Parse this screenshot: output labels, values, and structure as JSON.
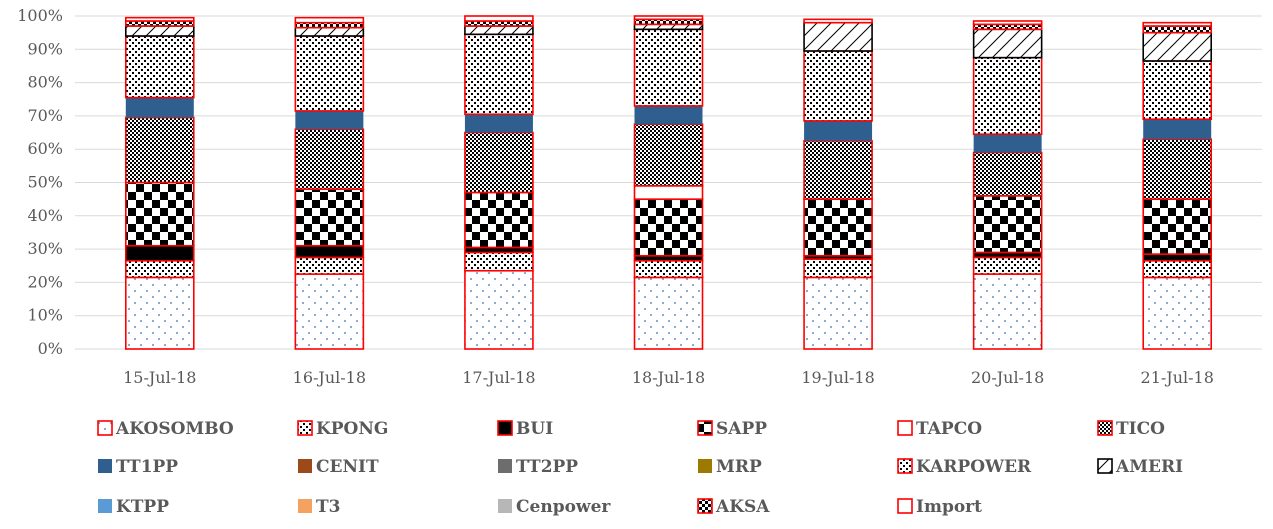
{
  "chart_data": {
    "type": "bar",
    "stacked": true,
    "percent": true,
    "categories": [
      "15-Jul-18",
      "16-Jul-18",
      "17-Jul-18",
      "18-Jul-18",
      "19-Jul-18",
      "20-Jul-18",
      "21-Jul-18"
    ],
    "y_ticks": [
      "0%",
      "10%",
      "20%",
      "30%",
      "40%",
      "50%",
      "60%",
      "70%",
      "80%",
      "90%",
      "100%"
    ],
    "ylim": [
      0,
      100
    ],
    "grid": true,
    "legend_position": "bottom",
    "series": [
      {
        "name": "AKOSOMBO",
        "color": "#ffffff",
        "border": "#ff0000",
        "pattern": "dots-blue",
        "values": [
          21.5,
          22.5,
          23.5,
          21.5,
          21.5,
          22.5,
          21.5
        ]
      },
      {
        "name": "KPONG",
        "color": "#ffffff",
        "border": "#ff0000",
        "pattern": "dense-dots",
        "values": [
          5,
          5,
          5.5,
          5,
          5.5,
          5,
          5
        ]
      },
      {
        "name": "BUI",
        "color": "#000000",
        "border": "#ff0000",
        "pattern": "solid",
        "values": [
          4.5,
          3.5,
          1.5,
          1.5,
          1,
          1.5,
          2
        ]
      },
      {
        "name": "SAPP",
        "color": "#ffffff",
        "border": "#ff0000",
        "pattern": "checker",
        "values": [
          19,
          17,
          16.5,
          17,
          17,
          17,
          16.5
        ]
      },
      {
        "name": "TAPCO",
        "color": "#ffffff",
        "border": "#ff0000",
        "pattern": "solid",
        "values": [
          0,
          0,
          0,
          4,
          0,
          0,
          0
        ]
      },
      {
        "name": "TICO",
        "color": "#ffffff",
        "border": "#ff0000",
        "pattern": "fine-checker",
        "values": [
          19.5,
          18,
          18,
          18.5,
          17.5,
          13,
          18
        ]
      },
      {
        "name": "TT1PP",
        "color": "#2e5f8f",
        "border": "none",
        "pattern": "solid",
        "values": [
          6,
          5.5,
          5.5,
          5.5,
          6,
          5.5,
          6
        ]
      },
      {
        "name": "CENIT",
        "color": "#9c4a1a",
        "border": "none",
        "pattern": "solid",
        "values": [
          0,
          0,
          0,
          0,
          0,
          0,
          0
        ]
      },
      {
        "name": "TT2PP",
        "color": "#6d6d6d",
        "border": "none",
        "pattern": "solid",
        "values": [
          0,
          0,
          0,
          0,
          0,
          0,
          0
        ]
      },
      {
        "name": "MRP",
        "color": "#9c7a00",
        "border": "none",
        "pattern": "solid",
        "values": [
          0,
          0,
          0,
          0,
          0,
          0,
          0
        ]
      },
      {
        "name": "KARPOWER",
        "color": "#ffffff",
        "border": "#ff0000",
        "pattern": "dense-dots",
        "values": [
          18.5,
          22.5,
          24,
          23,
          21,
          23,
          17.5
        ]
      },
      {
        "name": "AMERI",
        "color": "#ffffff",
        "border": "#000000",
        "pattern": "diagonal",
        "values": [
          3,
          2.5,
          2.5,
          1.5,
          8.5,
          8.5,
          8.5
        ]
      },
      {
        "name": "KTPP",
        "color": "#5b9bd5",
        "border": "none",
        "pattern": "solid",
        "values": [
          0,
          0,
          0,
          0,
          0,
          0,
          0
        ]
      },
      {
        "name": "T3",
        "color": "#f4a261",
        "border": "none",
        "pattern": "solid",
        "values": [
          0,
          0,
          0,
          0,
          0,
          0,
          0
        ]
      },
      {
        "name": "Cenpower",
        "color": "#b7b7b7",
        "border": "none",
        "pattern": "solid",
        "values": [
          0,
          0,
          0,
          0,
          0,
          0,
          0
        ]
      },
      {
        "name": "AKSA",
        "color": "#ffffff",
        "border": "#ff0000",
        "pattern": "small-checker",
        "values": [
          1.5,
          1.5,
          1.5,
          1.5,
          0,
          1.5,
          2
        ]
      },
      {
        "name": "Import",
        "color": "#ffffff",
        "border": "#ff0000",
        "pattern": "solid",
        "values": [
          1,
          1.5,
          1.5,
          1,
          1,
          1,
          1
        ]
      }
    ]
  }
}
